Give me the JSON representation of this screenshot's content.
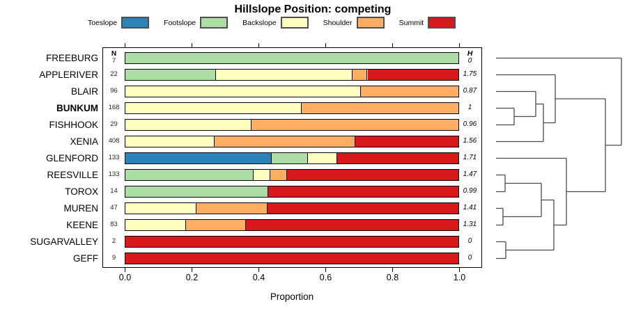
{
  "title": "Hillslope Position: competing",
  "chart_data": {
    "type": "bar",
    "subtype": "horizontal-stacked-proportion-with-dendrogram",
    "title": "Hillslope Position: competing",
    "xlabel": "Proportion",
    "xlim": [
      0,
      1
    ],
    "grid": false,
    "legend_position": "top",
    "x_ticks": [
      {
        "value": 0.0,
        "label": "0.0"
      },
      {
        "value": 0.2,
        "label": "0.2"
      },
      {
        "value": 0.4,
        "label": "0.4"
      },
      {
        "value": 0.6,
        "label": "0.6"
      },
      {
        "value": 0.8,
        "label": "0.8"
      },
      {
        "value": 1.0,
        "label": "1.0"
      }
    ],
    "categories": [
      "Toeslope",
      "Footslope",
      "Backslope",
      "Shoulder",
      "Summit"
    ],
    "category_colors": {
      "Toeslope": "#2B83BA",
      "Footslope": "#ABDDA4",
      "Backslope": "#FFFFBF",
      "Shoulder": "#FDAE61",
      "Summit": "#D7191C"
    },
    "n_header": "N",
    "h_header": "H",
    "rows": [
      {
        "label": "FREEBURG",
        "bold": false,
        "n": 7,
        "h": "0",
        "segments": [
          {
            "cat": "Footslope",
            "p": 1.0
          }
        ]
      },
      {
        "label": "APPLERIVER",
        "bold": false,
        "n": 22,
        "h": "1.75",
        "segments": [
          {
            "cat": "Footslope",
            "p": 0.273
          },
          {
            "cat": "Backslope",
            "p": 0.409
          },
          {
            "cat": "Shoulder",
            "p": 0.045
          },
          {
            "cat": "Summit",
            "p": 0.273
          }
        ]
      },
      {
        "label": "BLAIR",
        "bold": false,
        "n": 96,
        "h": "0.87",
        "segments": [
          {
            "cat": "Backslope",
            "p": 0.708
          },
          {
            "cat": "Shoulder",
            "p": 0.292
          }
        ]
      },
      {
        "label": "BUNKUM",
        "bold": true,
        "n": 168,
        "h": "1",
        "segments": [
          {
            "cat": "Backslope",
            "p": 0.53
          },
          {
            "cat": "Shoulder",
            "p": 0.47
          }
        ]
      },
      {
        "label": "FISHHOOK",
        "bold": false,
        "n": 29,
        "h": "0.96",
        "segments": [
          {
            "cat": "Backslope",
            "p": 0.379
          },
          {
            "cat": "Shoulder",
            "p": 0.621
          }
        ]
      },
      {
        "label": "XENIA",
        "bold": false,
        "n": 408,
        "h": "1.56",
        "segments": [
          {
            "cat": "Backslope",
            "p": 0.267
          },
          {
            "cat": "Shoulder",
            "p": 0.424
          },
          {
            "cat": "Summit",
            "p": 0.309
          }
        ]
      },
      {
        "label": "GLENFORD",
        "bold": false,
        "n": 133,
        "h": "1.71",
        "segments": [
          {
            "cat": "Toeslope",
            "p": 0.44
          },
          {
            "cat": "Footslope",
            "p": 0.108
          },
          {
            "cat": "Backslope",
            "p": 0.089
          },
          {
            "cat": "Summit",
            "p": 0.363
          }
        ]
      },
      {
        "label": "REESVILLE",
        "bold": false,
        "n": 133,
        "h": "1.47",
        "segments": [
          {
            "cat": "Footslope",
            "p": 0.384
          },
          {
            "cat": "Backslope",
            "p": 0.052
          },
          {
            "cat": "Shoulder",
            "p": 0.05
          },
          {
            "cat": "Summit",
            "p": 0.514
          }
        ]
      },
      {
        "label": "TOROX",
        "bold": false,
        "n": 14,
        "h": "0.99",
        "segments": [
          {
            "cat": "Footslope",
            "p": 0.428
          },
          {
            "cat": "Summit",
            "p": 0.572
          }
        ]
      },
      {
        "label": "MUREN",
        "bold": false,
        "n": 47,
        "h": "1.41",
        "segments": [
          {
            "cat": "Backslope",
            "p": 0.213
          },
          {
            "cat": "Shoulder",
            "p": 0.213
          },
          {
            "cat": "Summit",
            "p": 0.574
          }
        ]
      },
      {
        "label": "KEENE",
        "bold": false,
        "n": 83,
        "h": "1.31",
        "segments": [
          {
            "cat": "Backslope",
            "p": 0.181
          },
          {
            "cat": "Shoulder",
            "p": 0.181
          },
          {
            "cat": "Summit",
            "p": 0.638
          }
        ]
      },
      {
        "label": "SUGARVALLEY",
        "bold": false,
        "n": 2,
        "h": "0",
        "segments": [
          {
            "cat": "Summit",
            "p": 1.0
          }
        ]
      },
      {
        "label": "GEFF",
        "bold": false,
        "n": 9,
        "h": "0",
        "segments": [
          {
            "cat": "Summit",
            "p": 1.0
          }
        ]
      }
    ],
    "dendrogram": {
      "stroke_color": "#4a4a4a",
      "merges": [
        {
          "id": "m1",
          "a": "BUNKUM",
          "b": "FISHHOOK",
          "x": 738
        },
        {
          "id": "m2",
          "a": "BLAIR",
          "b": "m1",
          "x": 769
        },
        {
          "id": "m3",
          "a": "m2",
          "b": "XENIA",
          "x": 780
        },
        {
          "id": "m4",
          "a": "APPLERIVER",
          "b": "m3",
          "x": 797
        },
        {
          "id": "m5",
          "a": "REESVILLE",
          "b": "TOROX",
          "x": 725
        },
        {
          "id": "m6",
          "a": "MUREN",
          "b": "KEENE",
          "x": 722
        },
        {
          "id": "m7",
          "a": "m5",
          "b": "m6",
          "x": 777
        },
        {
          "id": "m8",
          "a": "SUGARVALLEY",
          "b": "GEFF",
          "x": 726
        },
        {
          "id": "m9",
          "a": "m7",
          "b": "m8",
          "x": 795
        },
        {
          "id": "m10",
          "a": "GLENFORD",
          "b": "m9",
          "x": 813
        },
        {
          "id": "m11",
          "a": "m4",
          "b": "m10",
          "x": 869
        },
        {
          "id": "m12",
          "a": "FREEBURG",
          "b": "m11",
          "x": 892
        }
      ]
    }
  }
}
